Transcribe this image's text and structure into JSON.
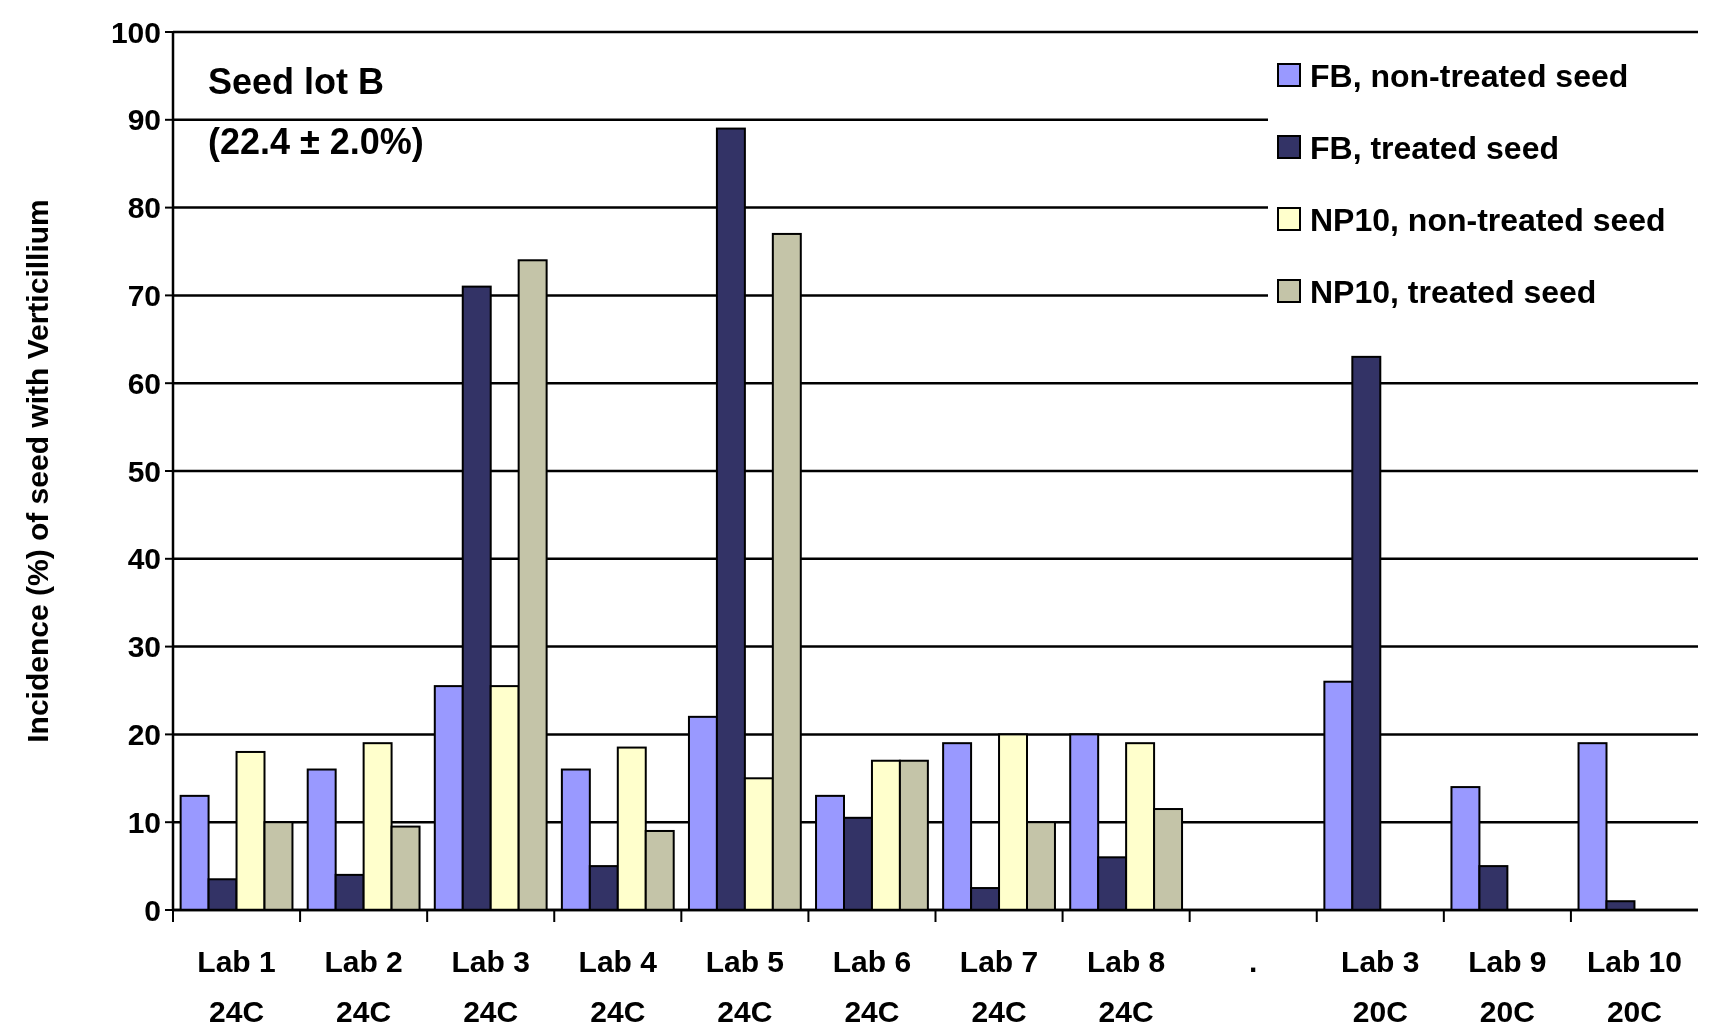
{
  "chart_data": {
    "type": "bar",
    "title": "Seed lot B",
    "subtitle": "(22.4 ± 2.0%)",
    "ylabel": "Incidence (%) of seed with Verticillium",
    "categories": [
      "Lab 1\n24C",
      "Lab 2\n24C",
      "Lab 3\n24C",
      "Lab 4\n24C",
      "Lab 5\n24C",
      "Lab 6\n24C",
      "Lab 7\n24C",
      "Lab 8\n24C",
      ".",
      "Lab 3\n20C",
      "Lab 9\n20C",
      "Lab 10\n20C"
    ],
    "series": [
      {
        "name": "FB, non-treated seed",
        "color": "#9999ff",
        "values": [
          13,
          16,
          25.5,
          16,
          22,
          13,
          19,
          20,
          null,
          26,
          14,
          19
        ]
      },
      {
        "name": "FB, treated seed",
        "color": "#333366",
        "values": [
          3.5,
          4,
          71,
          5,
          89,
          10.5,
          2.5,
          6,
          null,
          63,
          5,
          1
        ]
      },
      {
        "name": "NP10, non-treated seed",
        "color": "#ffffcc",
        "values": [
          18,
          19,
          25.5,
          18.5,
          15,
          17,
          20,
          19,
          null,
          null,
          null,
          null
        ]
      },
      {
        "name": "NP10, treated seed",
        "color": "#c4c4a8",
        "values": [
          10,
          9.5,
          74,
          9,
          77,
          17,
          10,
          11.5,
          null,
          null,
          null,
          null
        ]
      }
    ],
    "ylim": [
      0,
      100
    ],
    "yticks": [
      0,
      10,
      20,
      30,
      40,
      50,
      60,
      70,
      80,
      90,
      100
    ],
    "grid": "y",
    "legend": "top right"
  }
}
